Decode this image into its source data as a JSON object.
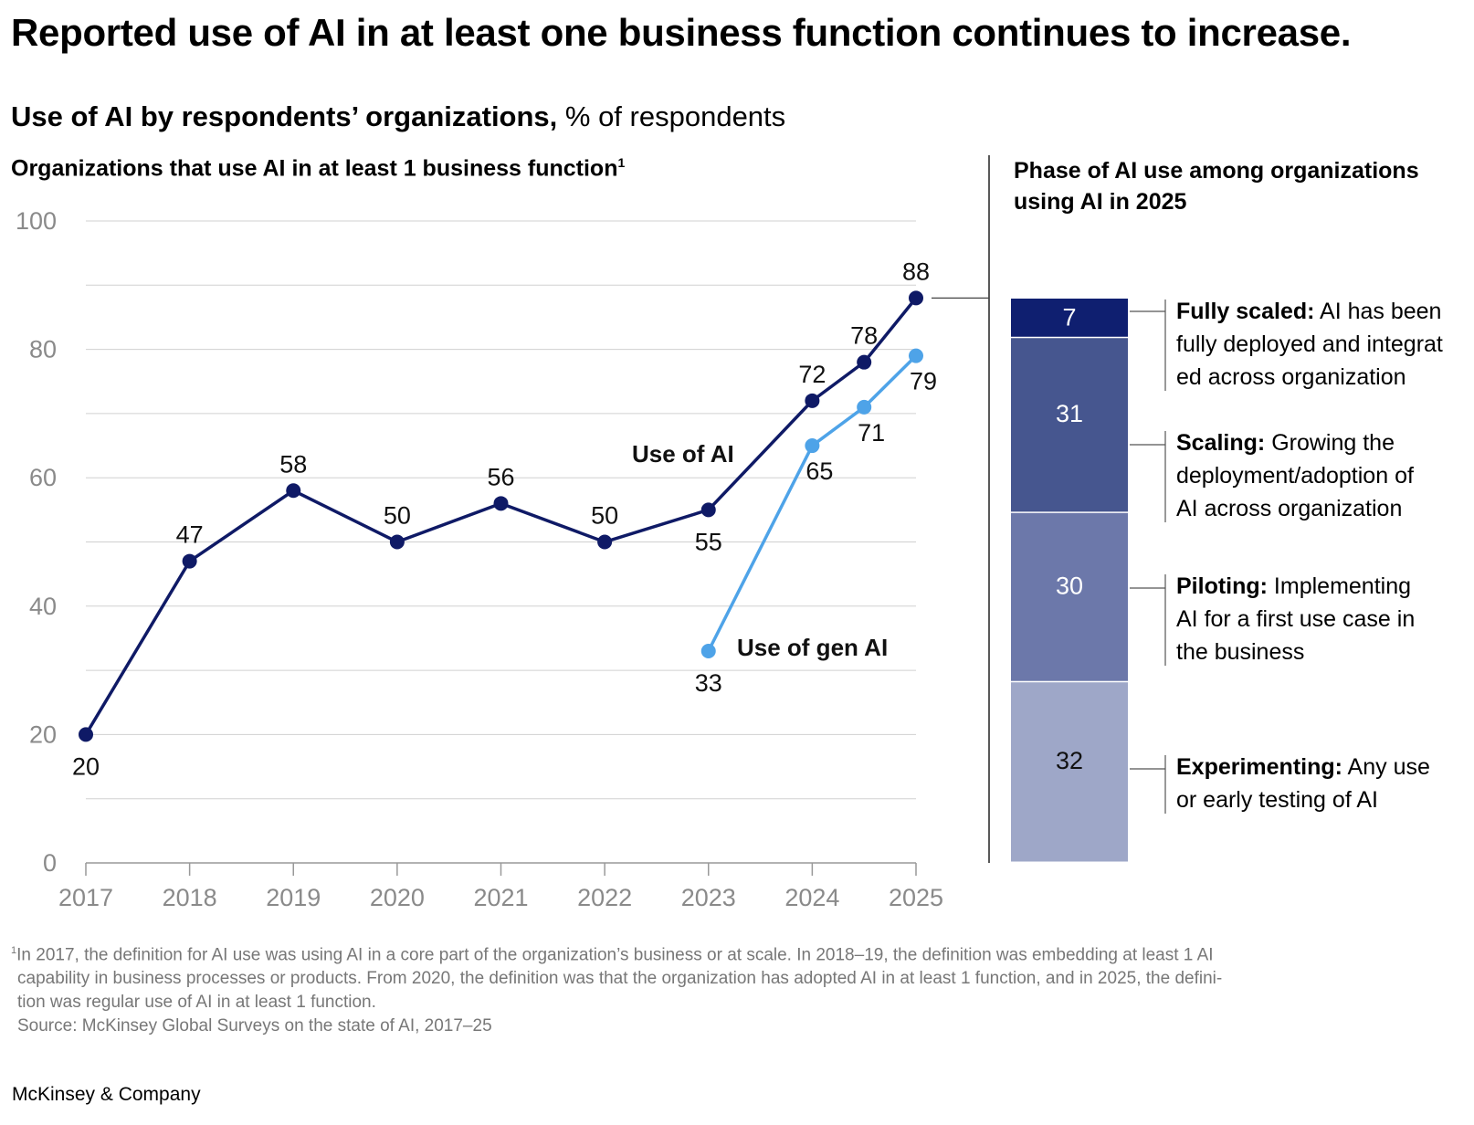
{
  "title": "Reported use of AI in at least one business function continues to increase.",
  "subtitle": {
    "bold": "Use of AI by respondents’ organizations,",
    "regular": " % of respondents"
  },
  "colors": {
    "use_of_ai": "#0f1a66",
    "use_of_gen_ai": "#4ea3e8",
    "grid": "#d0d0d0",
    "axis_text": "#8a8a8a",
    "phases": [
      "#0f1f70",
      "#46568f",
      "#6c78aa",
      "#9ea7c8"
    ]
  },
  "chart_data": [
    {
      "type": "line",
      "title": "Organizations that use AI in at least 1 business function",
      "title_footnote_marker": "1",
      "ylim": [
        0,
        100
      ],
      "y_ticks": [
        0,
        20,
        40,
        60,
        80,
        100
      ],
      "x_ticks": [
        "2017",
        "2018",
        "2019",
        "2020",
        "2021",
        "2022",
        "2023",
        "2024",
        "2025"
      ],
      "grid": "horizontal",
      "series": [
        {
          "name": "Use of AI",
          "x": [
            2017,
            2018,
            2019,
            2020,
            2021,
            2022,
            2023,
            2024,
            2024.5,
            2025
          ],
          "values": [
            20,
            47,
            58,
            50,
            56,
            50,
            55,
            72,
            78,
            88
          ]
        },
        {
          "name": "Use of gen AI",
          "x": [
            2023,
            2024,
            2024.5,
            2025
          ],
          "values": [
            33,
            65,
            71,
            79
          ]
        }
      ]
    },
    {
      "type": "bar",
      "stacked": true,
      "title": "Phase of AI use among organizations using AI in 2025",
      "segments": [
        {
          "value": 7,
          "label": "Fully scaled:",
          "description": " AI has been fully deployed and integrat-ed across organization",
          "lines": [
            "fully deployed and integrat",
            "ed across organization"
          ],
          "first": " AI has been"
        },
        {
          "value": 31,
          "label": "Scaling:",
          "first": " Growing the",
          "lines": [
            "deployment/adoption of",
            "AI across organization"
          ]
        },
        {
          "value": 30,
          "label": "Piloting:",
          "first": " Implementing",
          "lines": [
            "AI for a first use case in",
            "the business"
          ]
        },
        {
          "value": 32,
          "label": "Experimenting:",
          "first": " Any use",
          "lines": [
            "or early testing of AI"
          ]
        }
      ]
    }
  ],
  "footnote": {
    "marker": "1",
    "lines": [
      "In 2017, the definition for AI use was using AI in a core part of the organization’s business or at scale. In 2018–19, the definition was embedding at least 1 AI",
      "capability in business processes or products. From 2020, the definition was that the organization has adopted AI in at least 1 function, and in 2025, the defini-",
      "tion was regular use of AI in at least 1 function."
    ],
    "source": "Source: McKinsey Global Surveys on the state of AI, 2017–25"
  },
  "brand": "McKinsey & Company"
}
